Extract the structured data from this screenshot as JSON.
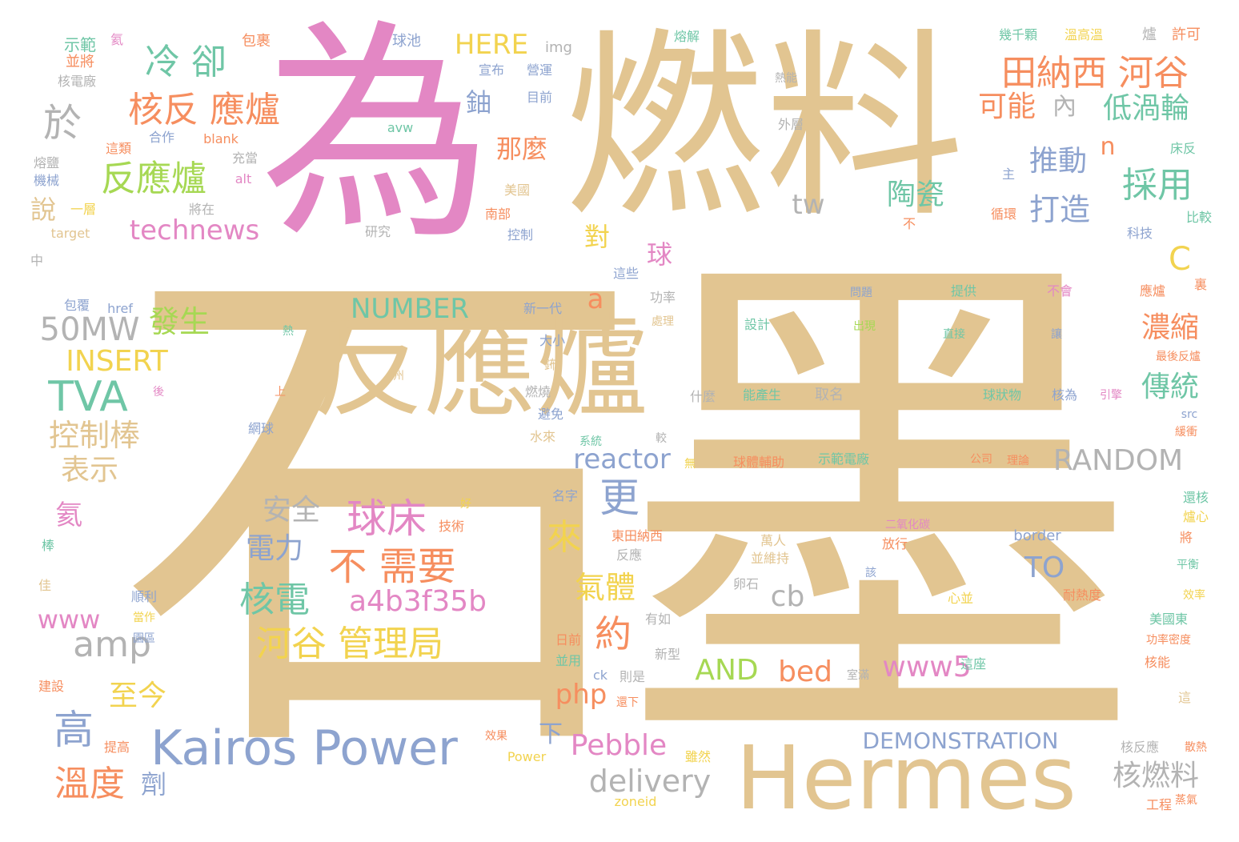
{
  "words": {
    "shimo": "石墨",
    "wei": "為",
    "ranliao": "燃料",
    "fanyinglu_big": "反應爐",
    "hermes": "Hermes",
    "kairos": "Kairos Power",
    "tianna": "田納西 河谷",
    "lengque": "冷 卻",
    "hefanyinglu": "核反 應爐",
    "fanyinglu2": "反應爐",
    "yu": "於",
    "technews": "technews",
    "tva": "TVA",
    "mw50": "50MW",
    "insert": "INSERT",
    "kongzhibang": "控制棒",
    "biaoshi": "表示",
    "qiuchuang": "球床",
    "buxuyao": "不 需要",
    "hedian": "核電",
    "hash": "a4b3f35b",
    "heguguanliju": "河谷 管理局",
    "dianli": "電力",
    "anquan": "安全",
    "amp": "amp",
    "www": "www",
    "gao": "高",
    "wendu": "溫度",
    "zhijin": "至今",
    "number": "NUMBER",
    "fasheng": "發生",
    "here": "HERE",
    "geng": "更",
    "lai": "來",
    "yue": "約",
    "qiti": "氣體",
    "cb": "cb",
    "reactor": "reactor",
    "php": "php",
    "pebble": "Pebble",
    "delivery": "delivery",
    "and": "AND",
    "bed": "bed",
    "www5": "www5",
    "to": "TO",
    "random": "RANDOM",
    "demonstration": "DEMONSTRATION",
    "keneng": "可能",
    "diwolun": "低渦輪",
    "caiyong": "採用",
    "tuidong": "推動",
    "dazao": "打造",
    "taoci": "陶瓷",
    "nongsuo": "濃縮",
    "chuantong": "傳統",
    "heranliao": "核燃料",
    "name": "那麼",
    "you": "鈾",
    "dui": "對",
    "qiu": "球",
    "c": "C",
    "a": "a",
    "n": "n",
    "tw": "tw",
    "nei": "內",
    "hai": "氦",
    "shuo": "說",
    "xia": "下",
    "ji": "劑",
    "extra": [
      "示範",
      "並將",
      "核電廠",
      "氦",
      "包裹",
      "球池",
      "img",
      "熔解",
      "幾千顆",
      "溫高溫",
      "爐",
      "許可",
      "宣布",
      "營運",
      "目前",
      "avw",
      "熱能",
      "外層",
      "合作",
      "blank",
      "充當",
      "這類",
      "熔鹽",
      "機械",
      "alt",
      "一層",
      "將在",
      "target",
      "研究",
      "美國",
      "南部",
      "控制",
      "床反",
      "主",
      "循環",
      "比較",
      "科技",
      "中",
      "不",
      "這些",
      "功率",
      "問題",
      "提供",
      "不會",
      "應爐",
      "裏",
      "包覆",
      "href",
      "熱",
      "新一代",
      "處理",
      "設計",
      "出現",
      "直接",
      "讓",
      "最後反爐",
      "大小",
      "鈽",
      "燃燒",
      "避免",
      "什麼",
      "能產生",
      "取名",
      "球狀物",
      "核為",
      "引擎",
      "上",
      "州",
      "後",
      "網球",
      "系統",
      "水來",
      "較",
      "無",
      "緩衝",
      "src",
      "球體輔助",
      "示範電廠",
      "公司",
      "理論",
      "名字",
      "好",
      "技術",
      "東田納西",
      "反應",
      "二氧化碳",
      "萬人",
      "並維持",
      "放行",
      "還核",
      "爐心",
      "將",
      "border",
      "棒",
      "佳",
      "順利",
      "卵石",
      "心並",
      "該",
      "耐熱度",
      "平衡",
      "效率",
      "當作",
      "有如",
      "美國東",
      "功率密度",
      "日前",
      "並用",
      "ck",
      "則是",
      "新型",
      "這座",
      "核能",
      "園區",
      "建設",
      "室滿",
      "這",
      "提高",
      "還下",
      "效果",
      "Power",
      "雖然",
      "核反應",
      "散熱",
      "zoneid",
      "蒸氣",
      "工程"
    ]
  },
  "colors": {
    "tan": "#e2c591",
    "pink": "#e387c4",
    "orange": "#f68e5f",
    "green": "#6fc6a6",
    "blue": "#8da3cf",
    "gray": "#b3b3b3",
    "yellow": "#f2d34f",
    "lime": "#a6d853"
  }
}
